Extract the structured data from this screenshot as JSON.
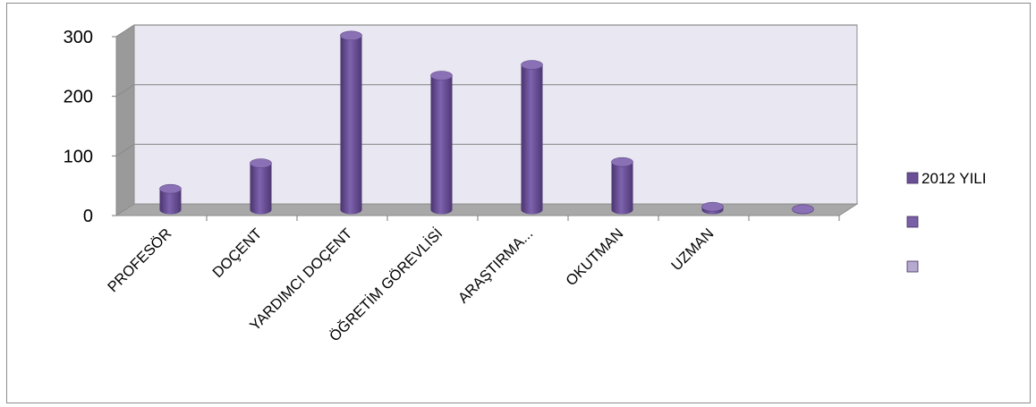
{
  "chart_data": {
    "type": "bar",
    "style": "3d-cylinder",
    "categories": [
      "PROFESÖR",
      "DOÇENT",
      "YARDIMCI DOÇENT",
      "ÖĞRETİM GÖREVLİSİ",
      "ARAŞTIRMA...",
      "OKUTMAN",
      "UZMAN",
      ""
    ],
    "series": [
      {
        "name": "2012 YILI",
        "values": [
          35,
          78,
          292,
          225,
          243,
          80,
          5,
          1
        ],
        "color": "#6a4f97"
      }
    ],
    "legend_extra": [
      {
        "name": "",
        "color": "#7a60a8"
      },
      {
        "name": "",
        "color": "#b6a9d0"
      }
    ],
    "y_ticks": [
      0,
      100,
      200,
      300
    ],
    "ylim": [
      0,
      300
    ],
    "grid": true,
    "legend_position": "right",
    "colors": {
      "wall": "#e9e7f1",
      "floor": "#a8a8a8",
      "grid": "#8c8c8c",
      "bar": "#6a4f97",
      "bar_top": "#8a71b6"
    }
  }
}
